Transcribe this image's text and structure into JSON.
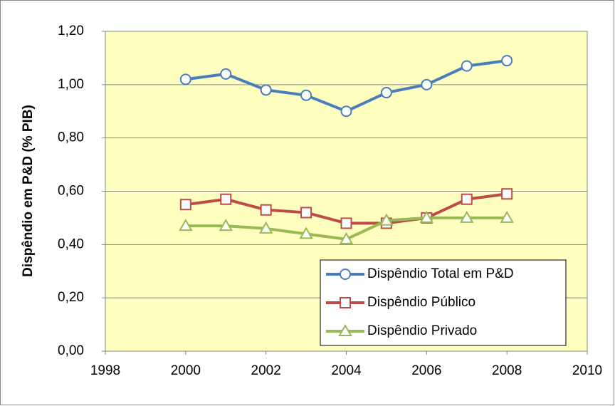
{
  "chart_data": {
    "type": "line",
    "ylabel": "Dispêndio em P&D (% PIB)",
    "x": [
      2000,
      2001,
      2002,
      2003,
      2004,
      2005,
      2006,
      2007,
      2008
    ],
    "series": [
      {
        "name": "Dispêndio Total em P&D",
        "color": "#4a7ebb",
        "marker": "circle",
        "values": [
          1.02,
          1.04,
          0.98,
          0.96,
          0.9,
          0.97,
          1.0,
          1.07,
          1.09
        ]
      },
      {
        "name": "Dispêndio Público",
        "color": "#be4b48",
        "marker": "square",
        "values": [
          0.55,
          0.57,
          0.53,
          0.52,
          0.48,
          0.48,
          0.5,
          0.57,
          0.59
        ]
      },
      {
        "name": "Dispêndio Privado",
        "color": "#98b954",
        "marker": "triangle",
        "values": [
          0.47,
          0.47,
          0.46,
          0.44,
          0.42,
          0.49,
          0.5,
          0.5,
          0.5
        ]
      }
    ],
    "xlim": [
      1998,
      2010
    ],
    "xticks": [
      1998,
      2000,
      2002,
      2004,
      2006,
      2008,
      2010
    ],
    "ylim": [
      0,
      1.2
    ],
    "yticks": [
      {
        "value": 0,
        "label": "0,00"
      },
      {
        "value": 0.2,
        "label": "0,20"
      },
      {
        "value": 0.4,
        "label": "0,40"
      },
      {
        "value": 0.6,
        "label": "0,60"
      },
      {
        "value": 0.8,
        "label": "0,80"
      },
      {
        "value": 1.0,
        "label": "1,00"
      },
      {
        "value": 1.2,
        "label": "1,20"
      }
    ],
    "grid": true,
    "plot_background": "#ffffc0",
    "legend": "lower right"
  }
}
